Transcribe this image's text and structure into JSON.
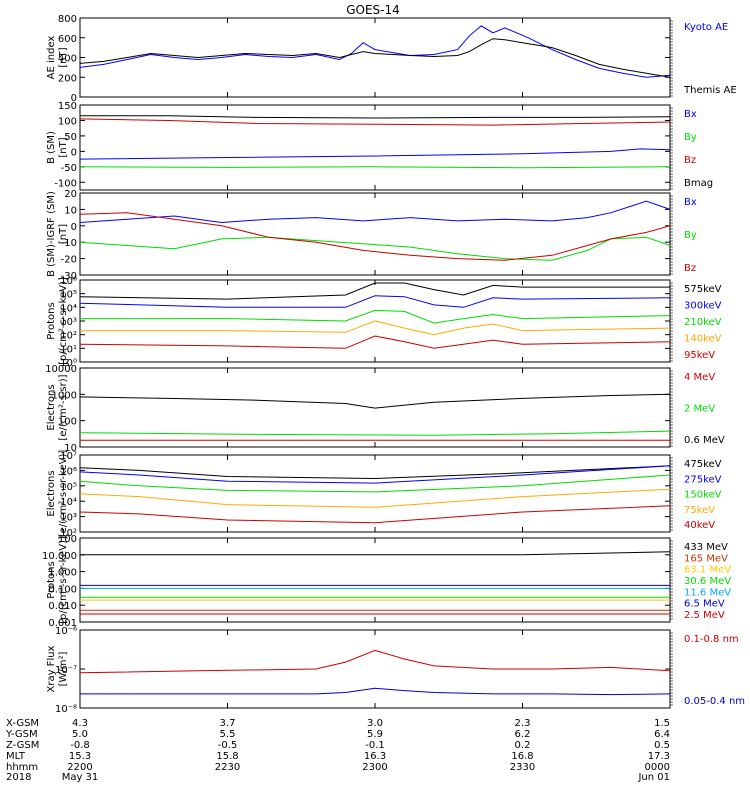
{
  "chart_data": {
    "type": "line",
    "title": "GOES-14",
    "x_ticks": [
      "2200",
      "2230",
      "2300",
      "2330",
      "0000"
    ],
    "panels": [
      {
        "id": "ae",
        "ylabel": [
          "AE index",
          "[nT]"
        ],
        "scale": "linear",
        "ylim": [
          0,
          800
        ],
        "yticks": [
          "0",
          "200",
          "400",
          "600",
          "800"
        ],
        "series": [
          {
            "name": "Kyoto AE",
            "color": "#0000ff",
            "x": [
              0,
              0.04,
              0.08,
              0.12,
              0.16,
              0.2,
              0.24,
              0.28,
              0.32,
              0.36,
              0.4,
              0.44,
              0.46,
              0.48,
              0.5,
              0.53,
              0.56,
              0.6,
              0.64,
              0.66,
              0.68,
              0.7,
              0.72,
              0.74,
              0.76,
              0.78,
              0.8,
              0.84,
              0.88,
              0.92,
              0.96,
              1
            ],
            "y": [
              300,
              330,
              380,
              430,
              400,
              380,
              400,
              430,
              410,
              400,
              430,
              380,
              440,
              550,
              480,
              450,
              420,
              430,
              480,
              620,
              720,
              650,
              700,
              650,
              600,
              540,
              480,
              380,
              290,
              240,
              200,
              220
            ]
          },
          {
            "name": "Themis AE",
            "color": "#000000",
            "x": [
              0,
              0.04,
              0.08,
              0.12,
              0.16,
              0.2,
              0.24,
              0.28,
              0.32,
              0.36,
              0.4,
              0.44,
              0.46,
              0.48,
              0.5,
              0.53,
              0.56,
              0.6,
              0.64,
              0.66,
              0.68,
              0.7,
              0.72,
              0.74,
              0.76,
              0.78,
              0.8,
              0.84,
              0.88,
              0.92,
              0.96,
              1
            ],
            "y": [
              340,
              360,
              400,
              440,
              420,
              400,
              420,
              440,
              430,
              420,
              440,
              400,
              430,
              460,
              440,
              430,
              420,
              410,
              420,
              460,
              530,
              590,
              580,
              560,
              540,
              520,
              500,
              420,
              330,
              280,
              240,
              200
            ]
          }
        ]
      },
      {
        "id": "bsm",
        "ylabel": [
          "B (SM)",
          "[nT]"
        ],
        "scale": "linear",
        "ylim": [
          -125,
          150
        ],
        "yticks": [
          "-100",
          "-50",
          "0",
          "50",
          "100",
          "150"
        ],
        "series": [
          {
            "name": "Bx",
            "color": "#0000ff",
            "x": [
              0,
              0.25,
              0.5,
              0.75,
              0.9,
              0.95,
              1
            ],
            "y": [
              -25,
              -20,
              -15,
              -8,
              0,
              8,
              5
            ]
          },
          {
            "name": "By",
            "color": "#00dd00",
            "x": [
              0,
              0.25,
              0.5,
              0.75,
              1
            ],
            "y": [
              -50,
              -52,
              -50,
              -53,
              -50
            ]
          },
          {
            "name": "Bz",
            "color": "#cc0000",
            "x": [
              0,
              0.15,
              0.3,
              0.5,
              0.7,
              0.85,
              1
            ],
            "y": [
              105,
              100,
              90,
              88,
              85,
              90,
              95
            ]
          },
          {
            "name": "Bmag",
            "color": "#000000",
            "x": [
              0,
              0.15,
              0.3,
              0.5,
              0.7,
              0.85,
              1
            ],
            "y": [
              115,
              115,
              110,
              108,
              110,
              110,
              112
            ]
          }
        ]
      },
      {
        "id": "bigrf",
        "ylabel": [
          "B (SM)-IGRF (SM)",
          "[nT]"
        ],
        "scale": "linear",
        "ylim": [
          -30,
          20
        ],
        "yticks": [
          "-30",
          "-20",
          "-10",
          "0",
          "10",
          "20"
        ],
        "series": [
          {
            "name": "Bx",
            "color": "#0000ff",
            "x": [
              0,
              0.08,
              0.16,
              0.24,
              0.32,
              0.4,
              0.48,
              0.56,
              0.64,
              0.72,
              0.8,
              0.86,
              0.9,
              0.96,
              1
            ],
            "y": [
              2,
              4,
              6,
              2,
              4,
              5,
              3,
              5,
              3,
              4,
              3,
              5,
              8,
              15,
              10
            ]
          },
          {
            "name": "By",
            "color": "#00dd00",
            "x": [
              0,
              0.08,
              0.16,
              0.24,
              0.32,
              0.4,
              0.48,
              0.56,
              0.64,
              0.72,
              0.8,
              0.86,
              0.9,
              0.96,
              1
            ],
            "y": [
              -10,
              -12,
              -14,
              -8,
              -7,
              -9,
              -11,
              -13,
              -17,
              -20,
              -21,
              -15,
              -8,
              -7,
              -12
            ]
          },
          {
            "name": "Bz",
            "color": "#cc0000",
            "x": [
              0,
              0.08,
              0.16,
              0.24,
              0.32,
              0.4,
              0.48,
              0.56,
              0.64,
              0.72,
              0.8,
              0.86,
              0.9,
              0.96,
              1
            ],
            "y": [
              7,
              8,
              4,
              0,
              -7,
              -10,
              -15,
              -18,
              -20,
              -21,
              -18,
              -12,
              -8,
              -4,
              0
            ]
          }
        ]
      },
      {
        "id": "protons_low",
        "ylabel": [
          "Protons",
          "[p/(cm²-s-sr-keV)]"
        ],
        "scale": "log",
        "ylim": [
          1,
          1000000
        ],
        "yticks": [
          "10⁰",
          "10¹",
          "10²",
          "10³",
          "10⁴",
          "10⁵",
          "10⁶"
        ],
        "series": [
          {
            "name": "575keV",
            "color": "#000000",
            "x": [
              0,
              0.25,
              0.45,
              0.5,
              0.55,
              0.6,
              0.65,
              0.7,
              0.75,
              1
            ],
            "y": [
              60000,
              40000,
              80000,
              600000,
              600000,
              200000,
              80000,
              400000,
              300000,
              300000
            ]
          },
          {
            "name": "300keV",
            "color": "#0000ff",
            "x": [
              0,
              0.25,
              0.45,
              0.5,
              0.55,
              0.6,
              0.65,
              0.7,
              0.75,
              1
            ],
            "y": [
              20000,
              10000,
              10000,
              70000,
              60000,
              15000,
              10000,
              50000,
              40000,
              50000
            ]
          },
          {
            "name": "210keV",
            "color": "#00dd00",
            "x": [
              0,
              0.25,
              0.45,
              0.5,
              0.55,
              0.6,
              0.65,
              0.7,
              0.75,
              1
            ],
            "y": [
              1500,
              1500,
              1000,
              6000,
              5000,
              700,
              1500,
              3000,
              1500,
              2500
            ]
          },
          {
            "name": "140keV",
            "color": "#ffaa00",
            "x": [
              0,
              0.25,
              0.45,
              0.5,
              0.55,
              0.6,
              0.65,
              0.7,
              0.75,
              1
            ],
            "y": [
              200,
              200,
              150,
              1000,
              300,
              100,
              300,
              600,
              200,
              300
            ]
          },
          {
            "name": "95keV",
            "color": "#cc0000",
            "x": [
              0,
              0.25,
              0.45,
              0.5,
              0.55,
              0.6,
              0.65,
              0.7,
              0.75,
              1
            ],
            "y": [
              20,
              15,
              10,
              80,
              30,
              10,
              20,
              40,
              20,
              30
            ]
          }
        ]
      },
      {
        "id": "electrons_mev",
        "ylabel": [
          "Electrons",
          "[e/(cm²-s-sr)]"
        ],
        "scale": "log",
        "ylim": [
          10,
          10000
        ],
        "yticks": [
          "10",
          "100",
          "1000",
          "10000"
        ],
        "series": [
          {
            "name": "4 MeV",
            "color": "#cc0000",
            "x": [
              0,
              0.5,
              1
            ],
            "y": [
              18,
              18,
              18
            ]
          },
          {
            "name": "2 MeV",
            "color": "#00dd00",
            "x": [
              0,
              0.3,
              0.6,
              0.8,
              1
            ],
            "y": [
              35,
              30,
              28,
              32,
              40
            ]
          },
          {
            "name": "0.6 MeV",
            "color": "#000000",
            "x": [
              0,
              0.15,
              0.3,
              0.45,
              0.5,
              0.6,
              0.75,
              0.9,
              1
            ],
            "y": [
              800,
              700,
              600,
              450,
              300,
              500,
              700,
              900,
              1000
            ]
          }
        ]
      },
      {
        "id": "electrons_kev",
        "ylabel": [
          "Electrons",
          "[e/(cm²-s-sr-keV)]"
        ],
        "scale": "log",
        "ylim": [
          100,
          10000000
        ],
        "yticks": [
          "10²",
          "10³",
          "10⁴",
          "10⁵",
          "10⁶",
          "10⁷"
        ],
        "series": [
          {
            "name": "475keV",
            "color": "#000000",
            "x": [
              0,
              0.1,
              0.25,
              0.5,
              0.75,
              1
            ],
            "y": [
              1500000,
              1000000,
              400000,
              300000,
              700000,
              2000000
            ]
          },
          {
            "name": "275keV",
            "color": "#0000ff",
            "x": [
              0,
              0.1,
              0.25,
              0.5,
              0.75,
              1
            ],
            "y": [
              800000,
              500000,
              200000,
              150000,
              500000,
              2000000
            ]
          },
          {
            "name": "150keV",
            "color": "#00dd00",
            "x": [
              0,
              0.1,
              0.25,
              0.5,
              0.75,
              1
            ],
            "y": [
              200000,
              100000,
              50000,
              40000,
              100000,
              500000
            ]
          },
          {
            "name": "75keV",
            "color": "#ffaa00",
            "x": [
              0,
              0.1,
              0.25,
              0.5,
              0.75,
              1
            ],
            "y": [
              30000,
              20000,
              6000,
              4000,
              20000,
              60000
            ]
          },
          {
            "name": "40keV",
            "color": "#cc0000",
            "x": [
              0,
              0.1,
              0.25,
              0.5,
              0.75,
              1
            ],
            "y": [
              2000,
              1500,
              600,
              400,
              2000,
              5000
            ]
          }
        ]
      },
      {
        "id": "protons_mev",
        "ylabel": [
          "Protons",
          "[p/(cm²-s-sr-keV)]"
        ],
        "scale": "log",
        "ylim": [
          0.001,
          100
        ],
        "yticks": [
          "0.001",
          "0.010",
          "0.100",
          "1.000",
          "10.000",
          "100"
        ],
        "series": [
          {
            "name": "433 MeV",
            "color": "#000000",
            "x": [
              0,
              0.25,
              0.5,
              0.75,
              1
            ],
            "y": [
              10,
              10,
              10,
              10,
              15
            ]
          },
          {
            "name": "165 MeV",
            "color": "#cc3300",
            "x": [
              0,
              0.5,
              1
            ],
            "y": [
              0.005,
              0.005,
              0.005
            ]
          },
          {
            "name": "63.1 MeV",
            "color": "#ffcc00",
            "x": [
              0,
              0.5,
              1
            ],
            "y": [
              0.02,
              0.02,
              0.02
            ]
          },
          {
            "name": "30.6 MeV",
            "color": "#00dd00",
            "x": [
              0,
              0.5,
              1
            ],
            "y": [
              0.03,
              0.03,
              0.03
            ]
          },
          {
            "name": "11.6 MeV",
            "color": "#00aaff",
            "x": [
              0,
              0.5,
              1
            ],
            "y": [
              0.1,
              0.1,
              0.1
            ]
          },
          {
            "name": "6.5 MeV",
            "color": "#0000cc",
            "x": [
              0,
              0.5,
              1
            ],
            "y": [
              0.15,
              0.15,
              0.15
            ]
          },
          {
            "name": "2.5 MeV",
            "color": "#cc0000",
            "x": [
              0,
              0.5,
              1
            ],
            "y": [
              0.003,
              0.003,
              0.003
            ]
          }
        ]
      },
      {
        "id": "xray",
        "ylabel": [
          "Xray Flux",
          "[W/m²]"
        ],
        "scale": "log",
        "ylim": [
          1e-08,
          1e-06
        ],
        "yticks": [
          "10⁻⁸",
          "10⁻⁷",
          "10⁻⁶"
        ],
        "series": [
          {
            "name": "0.1-0.8 nm",
            "color": "#cc0000",
            "x": [
              0,
              0.2,
              0.4,
              0.45,
              0.5,
              0.55,
              0.6,
              0.7,
              0.8,
              0.9,
              1
            ],
            "y": [
              8e-08,
              9e-08,
              1e-07,
              1.5e-07,
              3e-07,
              1.8e-07,
              1.2e-07,
              1e-07,
              1e-07,
              1.1e-07,
              9e-08
            ]
          },
          {
            "name": "0.05-0.4 nm",
            "color": "#0000cc",
            "x": [
              0,
              0.2,
              0.4,
              0.45,
              0.5,
              0.55,
              0.6,
              0.7,
              0.8,
              0.9,
              1
            ],
            "y": [
              2.3e-08,
              2.3e-08,
              2.3e-08,
              2.5e-08,
              3.2e-08,
              2.8e-08,
              2.5e-08,
              2.3e-08,
              2.3e-08,
              2.2e-08,
              2.3e-08
            ]
          }
        ]
      }
    ],
    "footer": {
      "labels": [
        "X-GSM",
        "Y-GSM",
        "Z-GSM",
        "MLT",
        "hhmm",
        "2018"
      ],
      "columns": [
        [
          "4.3",
          "5.0",
          "-0.8",
          "15.3",
          "2200",
          "May 31"
        ],
        [
          "3.7",
          "5.5",
          "-0.5",
          "15.8",
          "2230",
          ""
        ],
        [
          "3.0",
          "5.9",
          "-0.1",
          "16.3",
          "2300",
          ""
        ],
        [
          "2.3",
          "6.2",
          "0.2",
          "16.8",
          "2330",
          ""
        ],
        [
          "1.5",
          "6.4",
          "0.5",
          "17.3",
          "0000",
          "Jun 01"
        ]
      ]
    }
  }
}
